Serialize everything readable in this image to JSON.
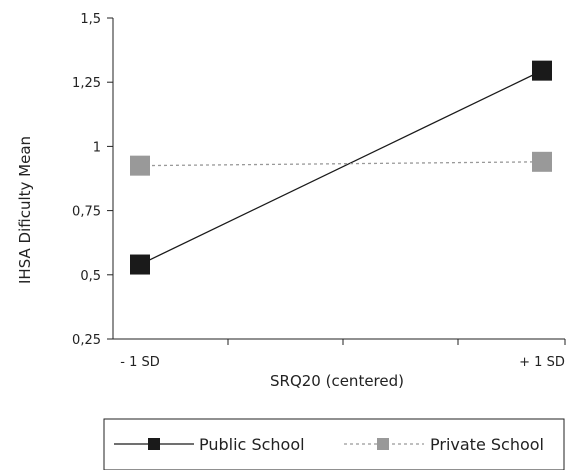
{
  "chart_data": {
    "type": "line",
    "title": "",
    "xlabel": "SRQ20 (centered)",
    "ylabel": "IHSA Dificulty Mean",
    "categories": [
      "- 1 SD",
      "+ 1 SD"
    ],
    "ylim": [
      0.25,
      1.5
    ],
    "yticks": [
      "0,25",
      "0,5",
      "0,75",
      "1",
      "1,25",
      "1,5"
    ],
    "ytick_values": [
      0.25,
      0.5,
      0.75,
      1.0,
      1.25,
      1.5
    ],
    "grid": false,
    "legend_position": "bottom",
    "series": [
      {
        "name": "Public School",
        "values": [
          0.54,
          1.295
        ],
        "color": "#1a1a1a",
        "line_style": "solid",
        "marker": "square"
      },
      {
        "name": "Private School",
        "values": [
          0.925,
          0.94
        ],
        "color": "#999999",
        "line_style": "dashed",
        "marker": "square"
      }
    ]
  }
}
